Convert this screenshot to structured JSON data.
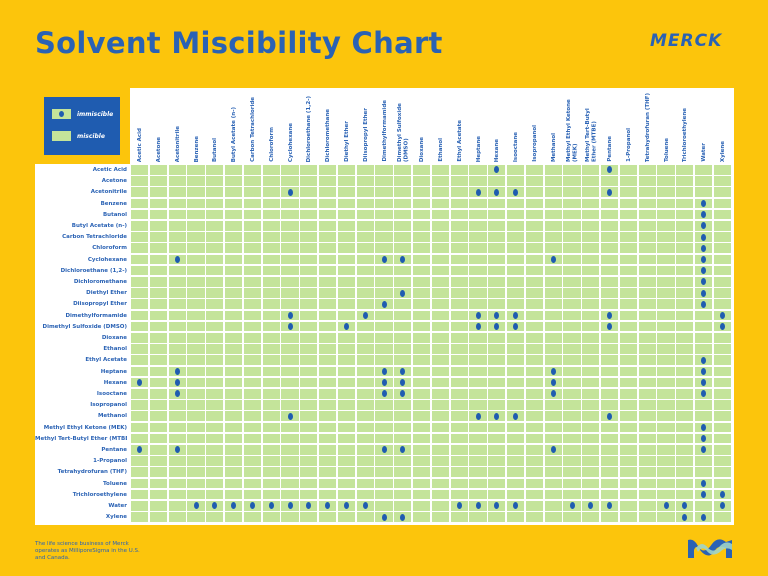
{
  "header": {
    "title": "Solvent Miscibility Chart",
    "brand": "MERCK"
  },
  "legend": {
    "immiscible_label": "immiscible",
    "miscible_label": "miscible"
  },
  "footer": {
    "text": "The life science business of Merck operates as MilliporeSigma in the U.S. and Canada."
  },
  "colors": {
    "background": "#fcc50c",
    "brand_blue": "#2a62b4",
    "miscible": "#c4e49a",
    "immiscible_dot": "#1f5cb0"
  },
  "chart_data": {
    "type": "table",
    "title": "Solvent Miscibility Chart",
    "solvents": [
      "Acetic Acid",
      "Acetone",
      "Acetonitrile",
      "Benzene",
      "Butanol",
      "Butyl Acetate (n-)",
      "Carbon Tetrachloride",
      "Chloroform",
      "Cyclohexane",
      "Dichloroethane (1,2-)",
      "Dichloromethane",
      "Diethyl Ether",
      "Diisopropyl Ether",
      "Dimethylformamide",
      "Dimethyl Sulfoxide (DMSO)",
      "Dioxane",
      "Ethanol",
      "Ethyl Acetate",
      "Heptane",
      "Hexane",
      "Isooctane",
      "Isopropanol",
      "Methanol",
      "Methyl Ethyl Ketone (MEK)",
      "Methyl Tert-Butyl Ether (MTBE)",
      "Pentane",
      "1-Propanol",
      "Tetrahydrofuran (THF)",
      "Toluene",
      "Trichloroethylene",
      "Water",
      "Xylene"
    ],
    "default": "miscible",
    "immiscible": {
      "Acetic Acid": [
        "Hexane",
        "Pentane"
      ],
      "Acetone": [],
      "Acetonitrile": [
        "Cyclohexane",
        "Heptane",
        "Hexane",
        "Isooctane",
        "Pentane"
      ],
      "Benzene": [
        "Water"
      ],
      "Butanol": [
        "Water"
      ],
      "Butyl Acetate (n-)": [
        "Water"
      ],
      "Carbon Tetrachloride": [
        "Water"
      ],
      "Chloroform": [
        "Water"
      ],
      "Cyclohexane": [
        "Acetonitrile",
        "Dimethylformamide",
        "Dimethyl Sulfoxide (DMSO)",
        "Methanol",
        "Water"
      ],
      "Dichloroethane (1,2-)": [
        "Water"
      ],
      "Dichloromethane": [
        "Water"
      ],
      "Diethyl Ether": [
        "Dimethyl Sulfoxide (DMSO)",
        "Water"
      ],
      "Diisopropyl Ether": [
        "Dimethylformamide",
        "Water"
      ],
      "Dimethylformamide": [
        "Cyclohexane",
        "Diisopropyl Ether",
        "Heptane",
        "Hexane",
        "Isooctane",
        "Pentane",
        "Xylene"
      ],
      "Dimethyl Sulfoxide (DMSO)": [
        "Cyclohexane",
        "Diethyl Ether",
        "Heptane",
        "Hexane",
        "Isooctane",
        "Pentane",
        "Xylene"
      ],
      "Dioxane": [],
      "Ethanol": [],
      "Ethyl Acetate": [
        "Water"
      ],
      "Heptane": [
        "Acetonitrile",
        "Dimethylformamide",
        "Dimethyl Sulfoxide (DMSO)",
        "Methanol",
        "Water"
      ],
      "Hexane": [
        "Acetic Acid",
        "Acetonitrile",
        "Dimethylformamide",
        "Dimethyl Sulfoxide (DMSO)",
        "Methanol",
        "Water"
      ],
      "Isooctane": [
        "Acetonitrile",
        "Dimethylformamide",
        "Dimethyl Sulfoxide (DMSO)",
        "Methanol",
        "Water"
      ],
      "Isopropanol": [],
      "Methanol": [
        "Cyclohexane",
        "Heptane",
        "Hexane",
        "Isooctane",
        "Pentane"
      ],
      "Methyl Ethyl Ketone (MEK)": [
        "Water"
      ],
      "Methyl Tert-Butyl Ether (MTBE)": [
        "Water"
      ],
      "Pentane": [
        "Acetic Acid",
        "Acetonitrile",
        "Dimethylformamide",
        "Dimethyl Sulfoxide (DMSO)",
        "Methanol",
        "Water"
      ],
      "1-Propanol": [],
      "Tetrahydrofuran (THF)": [],
      "Toluene": [
        "Water"
      ],
      "Trichloroethylene": [
        "Water",
        "Xylene"
      ],
      "Water": [
        "Benzene",
        "Butanol",
        "Butyl Acetate (n-)",
        "Carbon Tetrachloride",
        "Chloroform",
        "Cyclohexane",
        "Dichloroethane (1,2-)",
        "Dichloromethane",
        "Diethyl Ether",
        "Diisopropyl Ether",
        "Ethyl Acetate",
        "Heptane",
        "Hexane",
        "Isooctane",
        "Methyl Ethyl Ketone (MEK)",
        "Methyl Tert-Butyl Ether (MTBE)",
        "Pentane",
        "Toluene",
        "Trichloroethylene",
        "Xylene"
      ],
      "Xylene": [
        "Dimethylformamide",
        "Dimethyl Sulfoxide (DMSO)",
        "Trichloroethylene",
        "Water"
      ]
    }
  }
}
